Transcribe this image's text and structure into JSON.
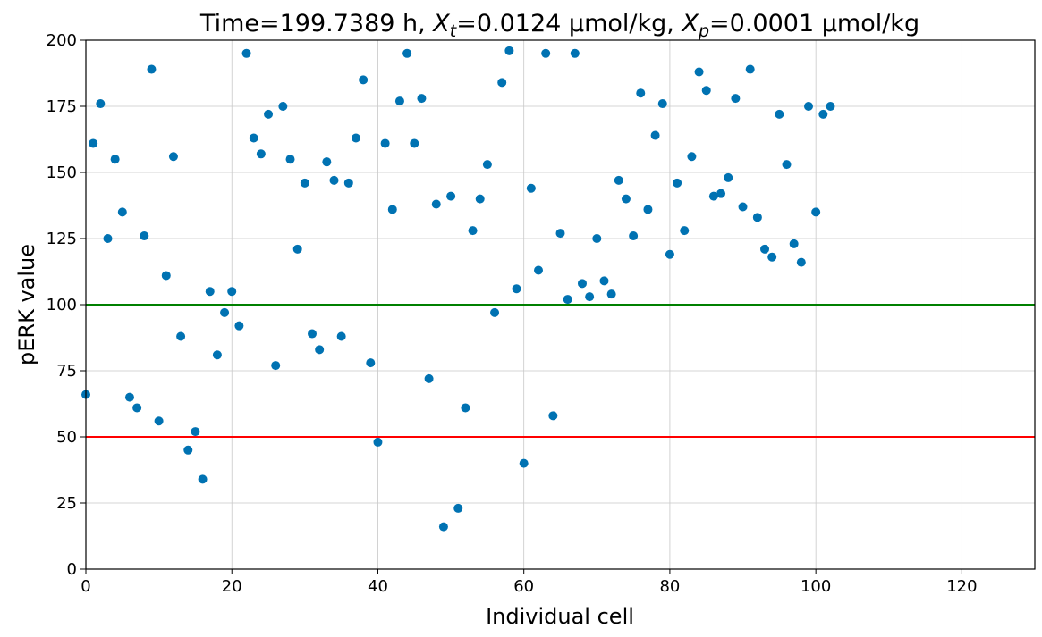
{
  "chart_data": {
    "type": "scatter",
    "title": {
      "time_label": "Time=199.7389 h, ",
      "xt_symbol": "X",
      "xt_sub": "t",
      "xt_value": "=0.0124 µmol/kg, ",
      "xp_symbol": "X",
      "xp_sub": "p",
      "xp_value": "=0.0001 µmol/kg"
    },
    "xlabel": "Individual cell",
    "ylabel": "pERK value",
    "xlim": [
      0,
      130
    ],
    "ylim": [
      0,
      200
    ],
    "x_ticks": [
      0,
      20,
      40,
      60,
      80,
      100,
      120
    ],
    "y_ticks": [
      0,
      25,
      50,
      75,
      100,
      125,
      150,
      175,
      200
    ],
    "grid": true,
    "point_color": "#0072B2",
    "threshold_lines": [
      {
        "y": 100,
        "color": "#008000"
      },
      {
        "y": 50,
        "color": "#ff0000"
      }
    ],
    "x": [
      0,
      1,
      2,
      3,
      4,
      5,
      6,
      7,
      8,
      9,
      10,
      11,
      12,
      13,
      14,
      15,
      16,
      17,
      18,
      19,
      20,
      21,
      22,
      23,
      24,
      25,
      26,
      27,
      28,
      29,
      30,
      31,
      32,
      33,
      34,
      35,
      36,
      37,
      38,
      39,
      40,
      41,
      42,
      43,
      44,
      45,
      46,
      47,
      48,
      49,
      50,
      51,
      52,
      53,
      54,
      55,
      56,
      57,
      58,
      59,
      60,
      61,
      62,
      63,
      64,
      65,
      66,
      67,
      68,
      69,
      70,
      71,
      72,
      73,
      74,
      75,
      76,
      77,
      78,
      79,
      80,
      81,
      82,
      83,
      84,
      85,
      86,
      87,
      88,
      89,
      90,
      91,
      92,
      93,
      94,
      95,
      96,
      97,
      98,
      99,
      100,
      101,
      102
    ],
    "y": [
      66,
      161,
      176,
      125,
      155,
      135,
      65,
      61,
      126,
      189,
      56,
      111,
      156,
      88,
      45,
      52,
      34,
      105,
      81,
      97,
      105,
      92,
      195,
      163,
      157,
      172,
      77,
      175,
      155,
      121,
      146,
      89,
      83,
      154,
      147,
      88,
      146,
      163,
      185,
      78,
      48,
      161,
      136,
      177,
      195,
      161,
      178,
      72,
      138,
      16,
      141,
      23,
      61,
      128,
      140,
      153,
      97,
      184,
      196,
      106,
      40,
      144,
      113,
      195,
      58,
      127,
      102,
      195,
      108,
      103,
      125,
      109,
      104,
      147,
      140,
      126,
      180,
      136,
      164,
      176,
      119,
      146,
      128,
      156,
      188,
      181,
      141,
      142,
      148,
      178,
      137,
      189,
      133,
      121,
      118,
      172,
      153,
      123,
      116,
      175,
      135,
      172,
      175
    ]
  }
}
